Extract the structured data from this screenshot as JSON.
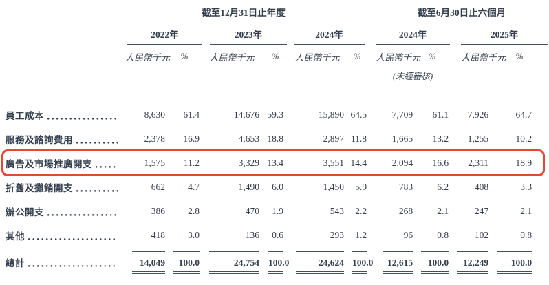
{
  "colors": {
    "text": "#34404e",
    "rule_line": "#44505e",
    "highlight_border": "#e8472f",
    "background": "#ffffff"
  },
  "table": {
    "group1_title": "截至12月31日止年度",
    "group2_title": "截至6月30日止六個月",
    "years": [
      "2022年",
      "2023年",
      "2024年",
      "2024年",
      "2025年"
    ],
    "unit_label": "人民幣千元",
    "pct_label": "%",
    "unaudited_note": "(未經審核)",
    "rows": [
      {
        "label": "員工成本",
        "highlight": false,
        "values": [
          "8,630",
          "61.4",
          "14,676",
          "59.3",
          "15,890",
          "64.5",
          "7,709",
          "61.1",
          "7,926",
          "64.7"
        ]
      },
      {
        "label": "服務及諮詢費用",
        "highlight": false,
        "values": [
          "2,378",
          "16.9",
          "4,653",
          "18.8",
          "2,897",
          "11.8",
          "1,665",
          "13.2",
          "1,255",
          "10.2"
        ]
      },
      {
        "label": "廣告及市場推廣開支",
        "highlight": true,
        "values": [
          "1,575",
          "11.2",
          "3,329",
          "13.4",
          "3,551",
          "14.4",
          "2,094",
          "16.6",
          "2,311",
          "18.9"
        ]
      },
      {
        "label": "折舊及攤銷開支",
        "highlight": false,
        "values": [
          "662",
          "4.7",
          "1,490",
          "6.0",
          "1,450",
          "5.9",
          "783",
          "6.2",
          "408",
          "3.3"
        ]
      },
      {
        "label": "辦公開支",
        "highlight": false,
        "values": [
          "386",
          "2.8",
          "470",
          "1.9",
          "543",
          "2.2",
          "268",
          "2.1",
          "247",
          "2.1"
        ]
      },
      {
        "label": "其他",
        "highlight": false,
        "values": [
          "418",
          "3.0",
          "136",
          "0.6",
          "293",
          "1.2",
          "96",
          "0.8",
          "102",
          "0.8"
        ]
      }
    ],
    "total_row": {
      "label": "總計",
      "values": [
        "14,049",
        "100.0",
        "24,754",
        "100.0",
        "24,624",
        "100.0",
        "12,615",
        "100.0",
        "12,249",
        "100.0"
      ]
    }
  }
}
